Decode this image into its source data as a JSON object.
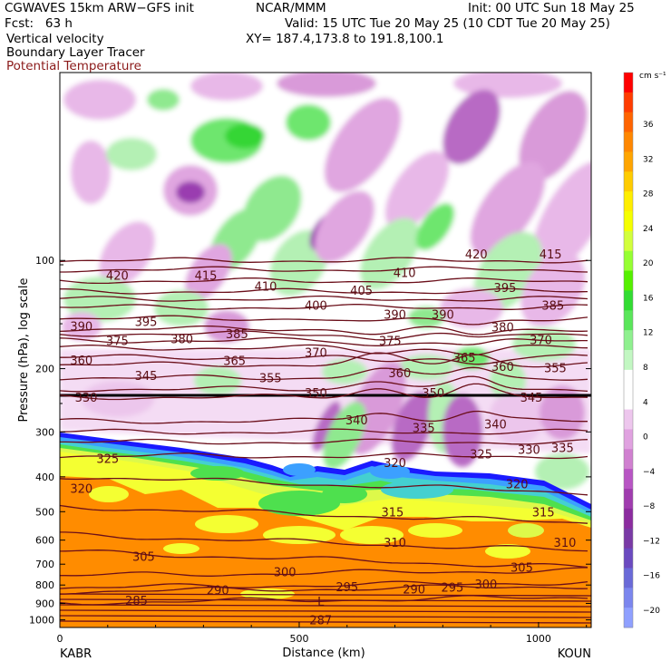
{
  "header": {
    "line1_left": "CGWAVES 15km ARW−GFS init",
    "line1_mid": "NCAR/MMM",
    "line1_right": "Init: 00 UTC Sun 18 May 25",
    "line2_left": "Fcst:   63 h",
    "line2_right": "Valid: 15 UTC Tue 20 May 25 (10 CDT Tue 20 May 25)",
    "line3_left": "Vertical velocity",
    "line3_right": "XY= 187.4,173.8 to 191.8,100.1",
    "line4_left": "Boundary Layer Tracer",
    "line5_left": "Potential Temperature"
  },
  "chart_data": {
    "type": "heatmap",
    "fields": [
      "Vertical velocity",
      "Boundary Layer Tracer",
      "Potential Temperature"
    ],
    "xlabel": "Distance (km)",
    "ylabel": "Pressure (hPa), log scale",
    "x_ticks": [
      "0",
      "500",
      "1000"
    ],
    "x_tick_values": [
      0,
      500,
      1000
    ],
    "xlim": [
      0,
      1110
    ],
    "x_end_labels": {
      "left": "KABR",
      "right": "KOUN"
    },
    "y_ticks": [
      "100",
      "200",
      "300",
      "400",
      "500",
      "600",
      "700",
      "800",
      "900",
      "1000"
    ],
    "y_tick_values": [
      100,
      200,
      300,
      400,
      500,
      600,
      700,
      800,
      900,
      1000
    ],
    "yscale": "log",
    "ylim": [
      1050,
      30
    ],
    "colorbar": {
      "unit": "cm s⁻¹",
      "labels": [
        "36",
        "32",
        "28",
        "24",
        "20",
        "16",
        "12",
        "8",
        "4",
        "0",
        "−4",
        "−8",
        "−12",
        "−16",
        "−20"
      ],
      "colors": [
        "#ff0000",
        "#ff3c00",
        "#ff6400",
        "#ff8700",
        "#ffa500",
        "#ffcc00",
        "#ffee00",
        "#f5ff00",
        "#d2ff3c",
        "#96ff32",
        "#55f000",
        "#32dc32",
        "#5ae65a",
        "#8ff08f",
        "#c2f7c2",
        "#ffffff",
        "#ffffff",
        "#edc6ed",
        "#e0a2e0",
        "#d080d0",
        "#b855c4",
        "#a03caf",
        "#8c2ca0",
        "#7a3aa6",
        "#6b4ac0",
        "#6a6ad8",
        "#7b86ee",
        "#8fa0ff"
      ]
    },
    "theta_labels": [
      {
        "value": "420",
        "x": 120,
        "p": 110
      },
      {
        "value": "415",
        "x": 305,
        "p": 110
      },
      {
        "value": "410",
        "x": 430,
        "p": 118
      },
      {
        "value": "410",
        "x": 720,
        "p": 108
      },
      {
        "value": "420",
        "x": 870,
        "p": 96
      },
      {
        "value": "415",
        "x": 1025,
        "p": 96
      },
      {
        "value": "390",
        "x": 45,
        "p": 152
      },
      {
        "value": "395",
        "x": 180,
        "p": 148
      },
      {
        "value": "400",
        "x": 535,
        "p": 133
      },
      {
        "value": "405",
        "x": 630,
        "p": 121
      },
      {
        "value": "390",
        "x": 700,
        "p": 141
      },
      {
        "value": "390",
        "x": 800,
        "p": 141
      },
      {
        "value": "395",
        "x": 930,
        "p": 119
      },
      {
        "value": "385",
        "x": 1030,
        "p": 133
      },
      {
        "value": "375",
        "x": 120,
        "p": 167
      },
      {
        "value": "380",
        "x": 255,
        "p": 165
      },
      {
        "value": "385",
        "x": 370,
        "p": 160
      },
      {
        "value": "375",
        "x": 690,
        "p": 167
      },
      {
        "value": "380",
        "x": 925,
        "p": 153
      },
      {
        "value": "370",
        "x": 1005,
        "p": 166
      },
      {
        "value": "360",
        "x": 45,
        "p": 189
      },
      {
        "value": "345",
        "x": 180,
        "p": 209
      },
      {
        "value": "365",
        "x": 365,
        "p": 190
      },
      {
        "value": "370",
        "x": 535,
        "p": 180
      },
      {
        "value": "355",
        "x": 440,
        "p": 212
      },
      {
        "value": "360",
        "x": 710,
        "p": 205
      },
      {
        "value": "365",
        "x": 845,
        "p": 186
      },
      {
        "value": "360",
        "x": 925,
        "p": 197
      },
      {
        "value": "355",
        "x": 1035,
        "p": 199
      },
      {
        "value": "350",
        "x": 535,
        "p": 233
      },
      {
        "value": "350",
        "x": 780,
        "p": 233
      },
      {
        "value": "345",
        "x": 985,
        "p": 240
      },
      {
        "value": "330",
        "x": 55,
        "p": 240
      },
      {
        "value": "340",
        "x": 620,
        "p": 278
      },
      {
        "value": "335",
        "x": 760,
        "p": 292
      },
      {
        "value": "340",
        "x": 910,
        "p": 285
      },
      {
        "value": "335",
        "x": 1050,
        "p": 331
      },
      {
        "value": "330",
        "x": 980,
        "p": 335
      },
      {
        "value": "325",
        "x": 100,
        "p": 355
      },
      {
        "value": "325",
        "x": 880,
        "p": 345
      },
      {
        "value": "320",
        "x": 700,
        "p": 365
      },
      {
        "value": "320",
        "x": 45,
        "p": 430
      },
      {
        "value": "320",
        "x": 955,
        "p": 418
      },
      {
        "value": "315",
        "x": 695,
        "p": 500
      },
      {
        "value": "315",
        "x": 1010,
        "p": 500
      },
      {
        "value": "310",
        "x": 700,
        "p": 608
      },
      {
        "value": "310",
        "x": 1055,
        "p": 608
      },
      {
        "value": "305",
        "x": 175,
        "p": 665
      },
      {
        "value": "305",
        "x": 965,
        "p": 713
      },
      {
        "value": "300",
        "x": 470,
        "p": 735
      },
      {
        "value": "300",
        "x": 890,
        "p": 795
      },
      {
        "value": "295",
        "x": 600,
        "p": 808
      },
      {
        "value": "295",
        "x": 820,
        "p": 810
      },
      {
        "value": "290",
        "x": 330,
        "p": 826
      },
      {
        "value": "290",
        "x": 740,
        "p": 820
      },
      {
        "value": "285",
        "x": 160,
        "p": 882
      },
      {
        "value": "L",
        "x": 545,
        "p": 888
      },
      {
        "value": "287",
        "x": 545,
        "p": 1000
      }
    ]
  }
}
